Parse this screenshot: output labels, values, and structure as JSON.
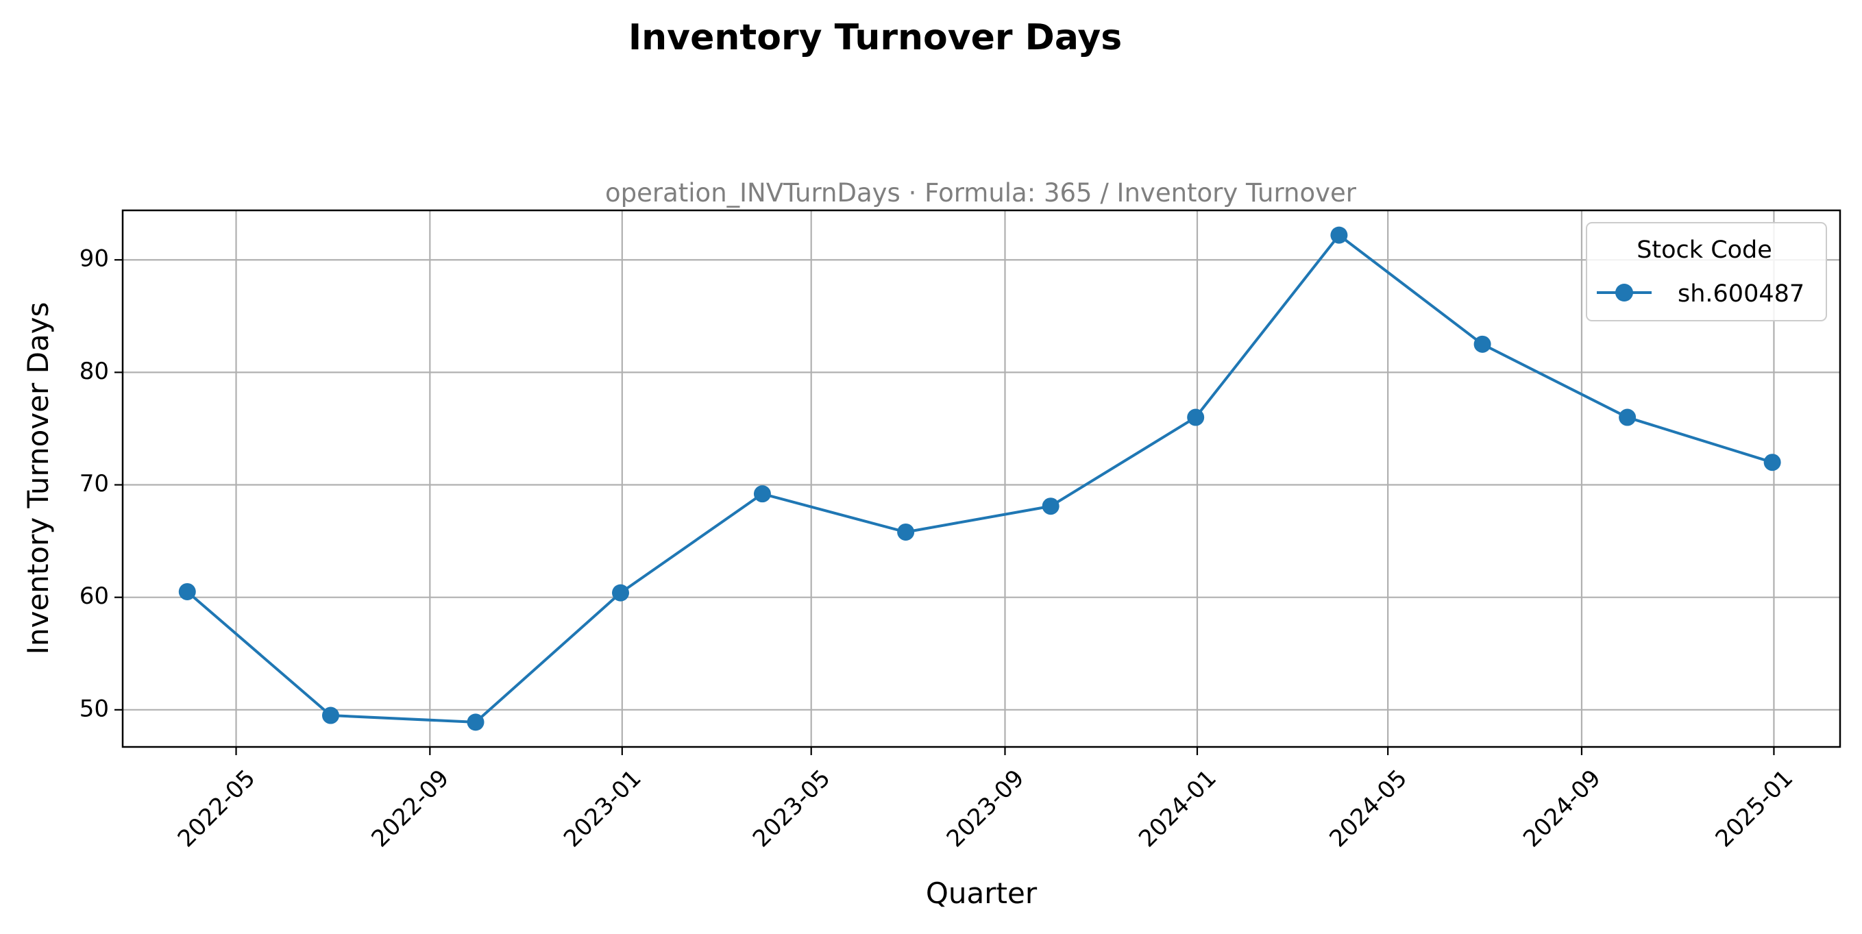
{
  "chart_data": {
    "type": "line",
    "title": "Inventory Turnover Days",
    "subtitle": "operation_INVTurnDays · Formula: 365 / Inventory Turnover",
    "xlabel": "Quarter",
    "ylabel": "Inventory Turnover Days",
    "x_tick_labels": [
      "2022-05",
      "2022-09",
      "2023-01",
      "2023-05",
      "2023-09",
      "2024-01",
      "2024-05",
      "2024-09",
      "2025-01"
    ],
    "x_ticks": [
      "2022-05-01",
      "2022-09-01",
      "2023-01-01",
      "2023-05-01",
      "2023-09-01",
      "2024-01-01",
      "2024-05-01",
      "2024-09-01",
      "2025-01-01"
    ],
    "y_ticks": [
      50,
      60,
      70,
      80,
      90
    ],
    "xlim": [
      "2022-02-18",
      "2025-02-12"
    ],
    "ylim": [
      46.7,
      94.4
    ],
    "grid": true,
    "legend": {
      "title": "Stock Code",
      "position": "top-right"
    },
    "series": [
      {
        "name": "sh.600487",
        "color": "#1f77b4",
        "marker": "circle",
        "x": [
          "2022-03-31",
          "2022-06-30",
          "2022-09-30",
          "2022-12-31",
          "2023-03-31",
          "2023-06-30",
          "2023-09-30",
          "2023-12-31",
          "2024-03-31",
          "2024-06-30",
          "2024-09-30",
          "2024-12-31"
        ],
        "values": [
          60.5,
          49.5,
          48.9,
          60.4,
          69.2,
          65.8,
          68.1,
          76.0,
          92.2,
          82.5,
          76.0,
          72.0
        ]
      }
    ]
  }
}
